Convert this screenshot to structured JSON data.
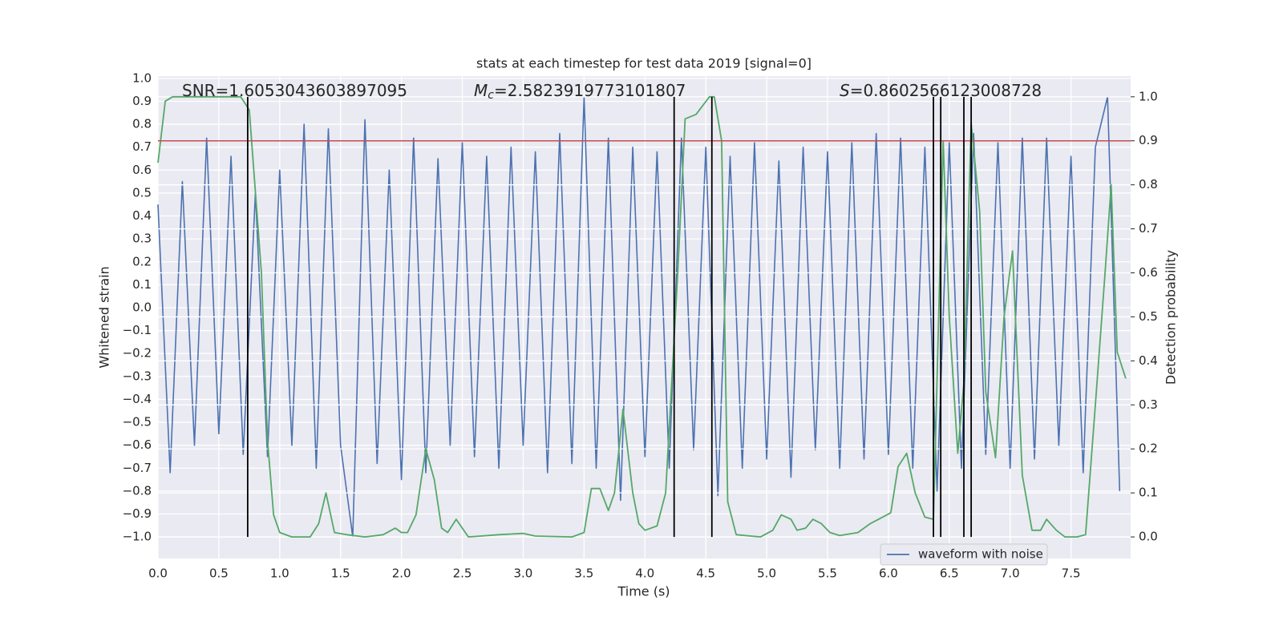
{
  "chart_data": {
    "type": "line",
    "title": "stats at each timestep for test data 2019 [signal=0]",
    "xlabel": "Time (s)",
    "ylabel": "Whitened strain",
    "y2label": "Detection probability",
    "xlim": [
      0,
      7.99
    ],
    "ylim": [
      -1.094,
      1.01
    ],
    "y2lim": [
      -0.049,
      1.047
    ],
    "xticks": [
      {
        "value": 0,
        "label": "0.0"
      },
      {
        "value": 0.5,
        "label": "0.5"
      },
      {
        "value": 1,
        "label": "1.0"
      },
      {
        "value": 1.5,
        "label": "1.5"
      },
      {
        "value": 2,
        "label": "2.0"
      },
      {
        "value": 2.5,
        "label": "2.5"
      },
      {
        "value": 3,
        "label": "3.0"
      },
      {
        "value": 3.5,
        "label": "3.5"
      },
      {
        "value": 4,
        "label": "4.0"
      },
      {
        "value": 4.5,
        "label": "4.5"
      },
      {
        "value": 5,
        "label": "5.0"
      },
      {
        "value": 5.5,
        "label": "5.5"
      },
      {
        "value": 6,
        "label": "6.0"
      },
      {
        "value": 6.5,
        "label": "6.5"
      },
      {
        "value": 7,
        "label": "7.0"
      },
      {
        "value": 7.5,
        "label": "7.5"
      }
    ],
    "yticks": [
      {
        "value": -1,
        "label": "−1.0"
      },
      {
        "value": -0.9,
        "label": "−0.9"
      },
      {
        "value": -0.8,
        "label": "−0.8"
      },
      {
        "value": -0.7,
        "label": "−0.7"
      },
      {
        "value": -0.6,
        "label": "−0.6"
      },
      {
        "value": -0.5,
        "label": "−0.5"
      },
      {
        "value": -0.4,
        "label": "−0.4"
      },
      {
        "value": -0.3,
        "label": "−0.3"
      },
      {
        "value": -0.2,
        "label": "−0.2"
      },
      {
        "value": -0.1,
        "label": "−0.1"
      },
      {
        "value": 0,
        "label": "0.0"
      },
      {
        "value": 0.1,
        "label": "0.1"
      },
      {
        "value": 0.2,
        "label": "0.2"
      },
      {
        "value": 0.3,
        "label": "0.3"
      },
      {
        "value": 0.4,
        "label": "0.4"
      },
      {
        "value": 0.5,
        "label": "0.5"
      },
      {
        "value": 0.6,
        "label": "0.6"
      },
      {
        "value": 0.7,
        "label": "0.7"
      },
      {
        "value": 0.8,
        "label": "0.8"
      },
      {
        "value": 0.9,
        "label": "0.9"
      },
      {
        "value": 1,
        "label": "1.0"
      }
    ],
    "y2ticks": [
      {
        "value": 0,
        "label": "0.0"
      },
      {
        "value": 0.1,
        "label": "0.1"
      },
      {
        "value": 0.2,
        "label": "0.2"
      },
      {
        "value": 0.3,
        "label": "0.3"
      },
      {
        "value": 0.4,
        "label": "0.4"
      },
      {
        "value": 0.5,
        "label": "0.5"
      },
      {
        "value": 0.6,
        "label": "0.6"
      },
      {
        "value": 0.7,
        "label": "0.7"
      },
      {
        "value": 0.8,
        "label": "0.8"
      },
      {
        "value": 0.9,
        "label": "0.9"
      },
      {
        "value": 1,
        "label": "1.0"
      }
    ],
    "grid": true,
    "legend": "lower right",
    "series": [
      {
        "name": "waveform with noise",
        "color": "#4c72b0",
        "x": [
          0,
          0.1,
          0.2,
          0.3,
          0.4,
          0.5,
          0.6,
          0.7,
          0.8,
          0.9,
          1,
          1.1,
          1.2,
          1.3,
          1.4,
          1.5,
          1.6,
          1.7,
          1.8,
          1.9,
          2,
          2.1,
          2.2,
          2.3,
          2.4,
          2.5,
          2.6,
          2.7,
          2.8,
          2.9,
          3,
          3.1,
          3.2,
          3.3,
          3.4,
          3.5,
          3.6,
          3.7,
          3.8,
          3.9,
          4,
          4.1,
          4.2,
          4.3,
          4.4,
          4.5,
          4.6,
          4.7,
          4.8,
          4.9,
          5,
          5.1,
          5.2,
          5.3,
          5.4,
          5.5,
          5.6,
          5.7,
          5.8,
          5.9,
          6,
          6.1,
          6.2,
          6.3,
          6.4,
          6.5,
          6.6,
          6.7,
          6.8,
          6.9,
          7,
          7.1,
          7.2,
          7.3,
          7.4,
          7.5,
          7.6,
          7.7,
          7.8,
          7.9
        ],
        "values": [
          0.45,
          -0.72,
          0.55,
          -0.6,
          0.74,
          -0.55,
          0.66,
          -0.64,
          0.5,
          -0.65,
          0.6,
          -0.6,
          0.8,
          -0.7,
          0.78,
          -0.6,
          -1.0,
          0.82,
          -0.68,
          0.6,
          -0.75,
          0.74,
          -0.72,
          0.65,
          -0.6,
          0.72,
          -0.65,
          0.66,
          -0.7,
          0.7,
          -0.6,
          0.68,
          -0.72,
          0.76,
          -0.68,
          0.92,
          -0.7,
          0.74,
          -0.84,
          0.7,
          -0.65,
          0.68,
          -0.7,
          0.74,
          -0.62,
          0.7,
          -0.82,
          0.66,
          -0.7,
          0.72,
          -0.66,
          0.64,
          -0.74,
          0.7,
          -0.62,
          0.68,
          -0.7,
          0.72,
          -0.66,
          0.76,
          -0.64,
          0.74,
          -0.7,
          0.7,
          -0.8,
          0.72,
          -0.7,
          0.76,
          -0.64,
          0.72,
          -0.7,
          0.74,
          -0.66,
          0.74,
          -0.6,
          0.66,
          -0.72,
          0.7,
          0.92,
          -0.8
        ]
      },
      {
        "color": "#55a868",
        "axis": "y2",
        "x": [
          0,
          0.06,
          0.12,
          0.5,
          0.68,
          0.75,
          0.85,
          0.9,
          0.95,
          1,
          1.1,
          1.25,
          1.32,
          1.38,
          1.45,
          1.55,
          1.7,
          1.85,
          1.95,
          2,
          2.05,
          2.12,
          2.2,
          2.27,
          2.33,
          2.38,
          2.45,
          2.55,
          2.8,
          3,
          3.1,
          3.4,
          3.5,
          3.56,
          3.63,
          3.7,
          3.75,
          3.82,
          3.9,
          3.95,
          4,
          4.1,
          4.17,
          4.27,
          4.33,
          4.42,
          4.53,
          4.57,
          4.63,
          4.68,
          4.75,
          4.95,
          5.05,
          5.12,
          5.2,
          5.25,
          5.32,
          5.38,
          5.45,
          5.52,
          5.6,
          5.75,
          5.85,
          5.92,
          6.02,
          6.08,
          6.15,
          6.22,
          6.3,
          6.37,
          6.45,
          6.5,
          6.57,
          6.62,
          6.68,
          6.75,
          6.8,
          6.88,
          6.95,
          7.02,
          7.1,
          7.18,
          7.25,
          7.3,
          7.38,
          7.45,
          7.55,
          7.62,
          7.7,
          7.78,
          7.83,
          7.88,
          7.95
        ],
        "values": [
          0.85,
          0.99,
          1.0,
          1.0,
          1.0,
          0.97,
          0.6,
          0.22,
          0.05,
          0.01,
          0.0,
          0.0,
          0.03,
          0.1,
          0.01,
          0.005,
          0.0,
          0.005,
          0.02,
          0.01,
          0.01,
          0.05,
          0.2,
          0.13,
          0.02,
          0.01,
          0.04,
          0.0,
          0.005,
          0.008,
          0.002,
          0.0,
          0.01,
          0.11,
          0.11,
          0.06,
          0.1,
          0.29,
          0.1,
          0.03,
          0.015,
          0.025,
          0.1,
          0.6,
          0.95,
          0.96,
          1.0,
          1.0,
          0.9,
          0.08,
          0.005,
          0.0,
          0.015,
          0.05,
          0.04,
          0.015,
          0.02,
          0.04,
          0.03,
          0.01,
          0.003,
          0.01,
          0.03,
          0.04,
          0.055,
          0.16,
          0.19,
          0.1,
          0.045,
          0.04,
          0.9,
          0.5,
          0.19,
          0.35,
          0.94,
          0.74,
          0.33,
          0.18,
          0.5,
          0.65,
          0.14,
          0.015,
          0.015,
          0.04,
          0.015,
          0.0,
          0.0,
          0.005,
          0.3,
          0.6,
          0.8,
          0.42,
          0.36
        ]
      }
    ],
    "threshold": {
      "value": 0.9,
      "axis": "y2",
      "color": "#c44e52"
    },
    "detections": {
      "values": [
        0.737,
        4.24,
        4.55,
        6.37,
        6.43,
        6.62,
        6.68
      ],
      "range": [
        0,
        1
      ],
      "axis": "y2",
      "color": "#000000"
    },
    "annotations": [
      {
        "text": "SNR=1.6053043603897095"
      },
      {
        "symbol": "M",
        "subscript": "c",
        "text": "=2.5823919773101807"
      },
      {
        "symbol": "S",
        "text": "=0.8602566123008728"
      }
    ]
  }
}
